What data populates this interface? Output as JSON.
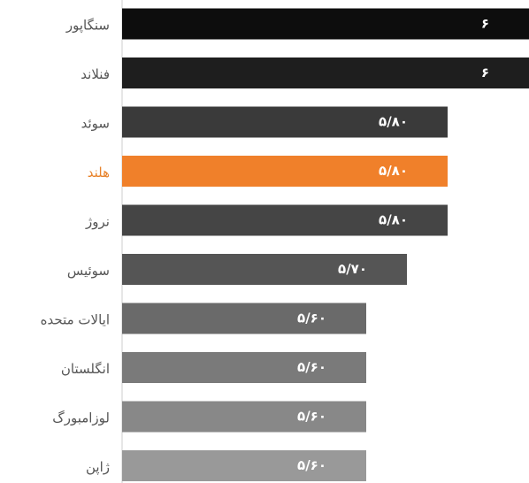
{
  "chart_data": {
    "type": "barh",
    "categories": [
      "سنگاپور",
      "فنلاند",
      "سوئد",
      "هلند",
      "نروژ",
      "سوئیس",
      "ایالات متحده",
      "انگلستان",
      "لوزامبورگ",
      "ژاپن"
    ],
    "values": [
      6,
      6,
      5.8,
      5.8,
      5.8,
      5.7,
      5.6,
      5.6,
      5.6,
      5.6
    ],
    "value_labels": [
      "۶",
      "۶",
      "۵/۸۰",
      "۵/۸۰",
      "۵/۸۰",
      "۵/۷۰",
      "۵/۶۰",
      "۵/۶۰",
      "۵/۶۰",
      "۵/۶۰"
    ],
    "colors": [
      "#0d0d0d",
      "#1e1e1e",
      "#3a3a3a",
      "#f0802a",
      "#454545",
      "#555555",
      "#6a6a6a",
      "#7a7a7a",
      "#888888",
      "#999999"
    ],
    "label_colors": [
      "#555555",
      "#555555",
      "#555555",
      "#e8822a",
      "#555555",
      "#555555",
      "#555555",
      "#555555",
      "#555555",
      "#555555"
    ],
    "xlim": [
      5,
      6
    ]
  }
}
